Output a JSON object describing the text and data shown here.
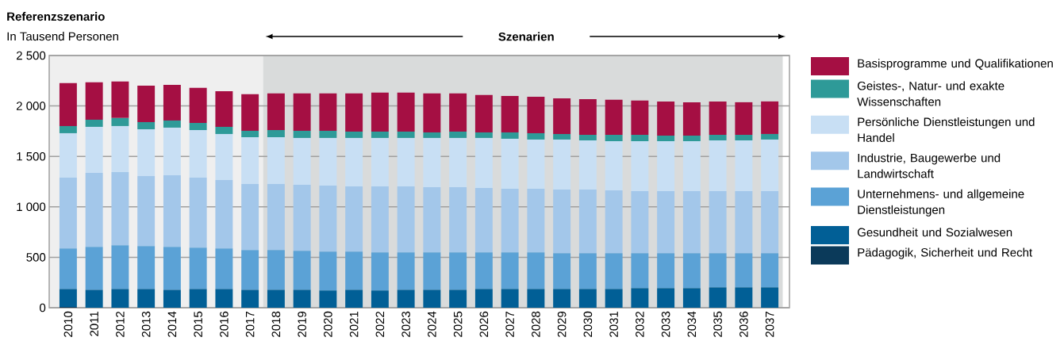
{
  "chart_data": {
    "type": "bar",
    "stacked": true,
    "title": "Referenzszenario",
    "ylabel": "In Tausend Personen",
    "annotations": [
      "Szenarien"
    ],
    "categories": [
      "2010",
      "2011",
      "2012",
      "2013",
      "2014",
      "2015",
      "2016",
      "2017",
      "2018",
      "2019",
      "2020",
      "2021",
      "2022",
      "2023",
      "2024",
      "2025",
      "2026",
      "2027",
      "2028",
      "2029",
      "2030",
      "2031",
      "2032",
      "2033",
      "2034",
      "2035",
      "2036",
      "2037"
    ],
    "series": [
      {
        "name": "Pädagogik, Sicherheit und Recht",
        "color": "#0b3a5a",
        "values": [
          8,
          0,
          0,
          0,
          0,
          0,
          0,
          0,
          0,
          0,
          0,
          0,
          0,
          0,
          0,
          0,
          0,
          0,
          0,
          0,
          0,
          0,
          0,
          0,
          0,
          0,
          0,
          0
        ]
      },
      {
        "name": "Gesundheit und Sozialwesen",
        "color": "#015f96",
        "values": [
          178,
          178,
          186,
          186,
          178,
          186,
          186,
          178,
          178,
          178,
          171,
          178,
          171,
          178,
          178,
          178,
          186,
          186,
          186,
          186,
          186,
          186,
          194,
          194,
          194,
          202,
          202,
          202
        ]
      },
      {
        "name": "Unternehmens- und allgemeine Dienstleistungen",
        "color": "#5ba2d6",
        "values": [
          402,
          426,
          434,
          426,
          426,
          410,
          402,
          394,
          394,
          386,
          386,
          379,
          378,
          371,
          371,
          371,
          363,
          363,
          363,
          355,
          355,
          355,
          347,
          347,
          347,
          339,
          339,
          339
        ]
      },
      {
        "name": "Industrie, Baugewerbe und Landwirtschaft",
        "color": "#a3c7ea",
        "values": [
          701,
          732,
          724,
          693,
          709,
          693,
          677,
          654,
          654,
          654,
          653,
          645,
          653,
          653,
          645,
          645,
          638,
          630,
          630,
          630,
          630,
          622,
          614,
          614,
          614,
          614,
          614,
          614
        ]
      },
      {
        "name": "Persönliche Dienstleistungen und Handel",
        "color": "#c8dff4",
        "values": [
          441,
          457,
          457,
          464,
          472,
          472,
          457,
          464,
          464,
          465,
          473,
          481,
          481,
          481,
          489,
          489,
          496,
          496,
          488,
          496,
          488,
          488,
          496,
          496,
          496,
          504,
          504,
          512
        ]
      },
      {
        "name": "Geistes-, Natur- und exakte Wissenschaften",
        "color": "#2e9a98",
        "values": [
          71,
          71,
          79,
          71,
          71,
          71,
          71,
          64,
          71,
          71,
          71,
          63,
          63,
          63,
          55,
          63,
          55,
          63,
          63,
          55,
          55,
          63,
          63,
          55,
          55,
          55,
          55,
          55
        ]
      },
      {
        "name": "Basisprogramme und Qualifikationen",
        "color": "#a50f43",
        "values": [
          425,
          370,
          362,
          362,
          354,
          347,
          354,
          362,
          363,
          370,
          370,
          378,
          386,
          386,
          386,
          378,
          370,
          362,
          362,
          354,
          354,
          347,
          339,
          339,
          331,
          331,
          323,
          323
        ]
      }
    ],
    "ylim": [
      0,
      2500
    ],
    "yticks": [
      0,
      500,
      {
        "value": 1000,
        "label": "1 000"
      },
      {
        "value": 1500,
        "label": "1 500"
      },
      {
        "value": 2000,
        "label": "2 000"
      },
      {
        "value": 2500,
        "label": "2 500"
      }
    ],
    "grid": "y",
    "legend": "right",
    "bands": [
      {
        "axis": "x",
        "from": "2010",
        "to": "2017",
        "color": "#efefef"
      },
      {
        "axis": "x",
        "from": "2018",
        "to": "2037",
        "color": "#d9dbdb"
      }
    ]
  }
}
